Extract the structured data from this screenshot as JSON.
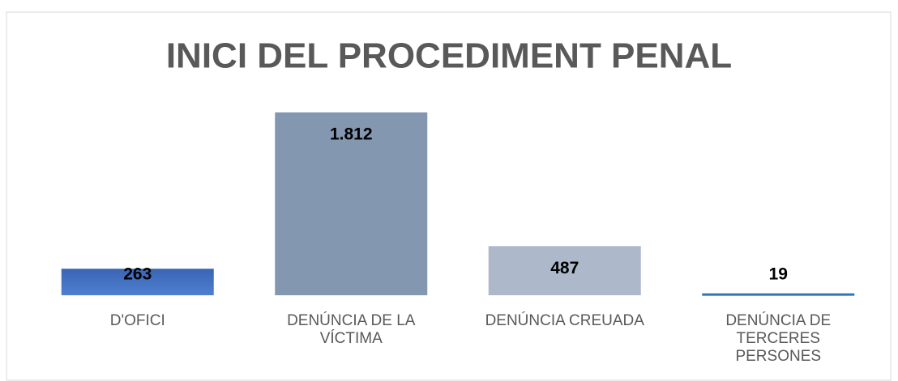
{
  "chart_data": {
    "type": "bar",
    "title": "INICI DEL PROCEDIMENT PENAL",
    "categories": [
      "D'OFICI",
      "DENÚNCIA  DE LA VÍCTIMA",
      "DENÚNCIA CREUADA",
      "DENÚNCIA DE TERCERES PERSONES"
    ],
    "values": [
      263,
      1812,
      487,
      19
    ],
    "value_labels": [
      "263",
      "1.812",
      "487",
      "19"
    ],
    "colors": [
      "#4472c4",
      "#8497b0",
      "#adb9ca",
      "#2e75b6"
    ]
  }
}
